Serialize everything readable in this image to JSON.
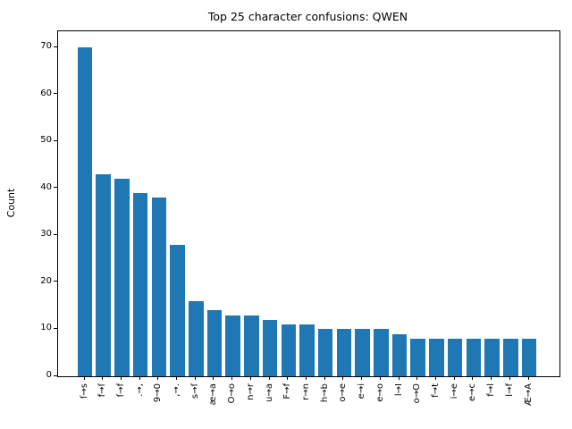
{
  "chart_data": {
    "type": "bar",
    "title": "Top 25 character confusions: QWEN",
    "xlabel": "",
    "ylabel": "Count",
    "categories": [
      "ſ→s",
      "f→ſ",
      "ſ→f",
      ".→,",
      "9→0",
      ",→.",
      "s→ſ",
      "æ→a",
      "O→o",
      "n→r",
      "u→a",
      "F→f",
      "r→n",
      "h→b",
      "o→e",
      "e→i",
      "e→o",
      "l→I",
      "o→O",
      "f→t",
      "i→e",
      "e→c",
      "f→l",
      "l→f",
      "Æ→A"
    ],
    "values": [
      70,
      43,
      42,
      39,
      38,
      28,
      16,
      14,
      13,
      13,
      12,
      11,
      11,
      10,
      10,
      10,
      10,
      9,
      8,
      8,
      8,
      8,
      8,
      8,
      8
    ],
    "yticks": [
      0,
      10,
      20,
      30,
      40,
      50,
      60,
      70
    ],
    "ylim": [
      0,
      73.5
    ],
    "bar_color": "#1f77b4",
    "grid": false,
    "legend": null
  }
}
